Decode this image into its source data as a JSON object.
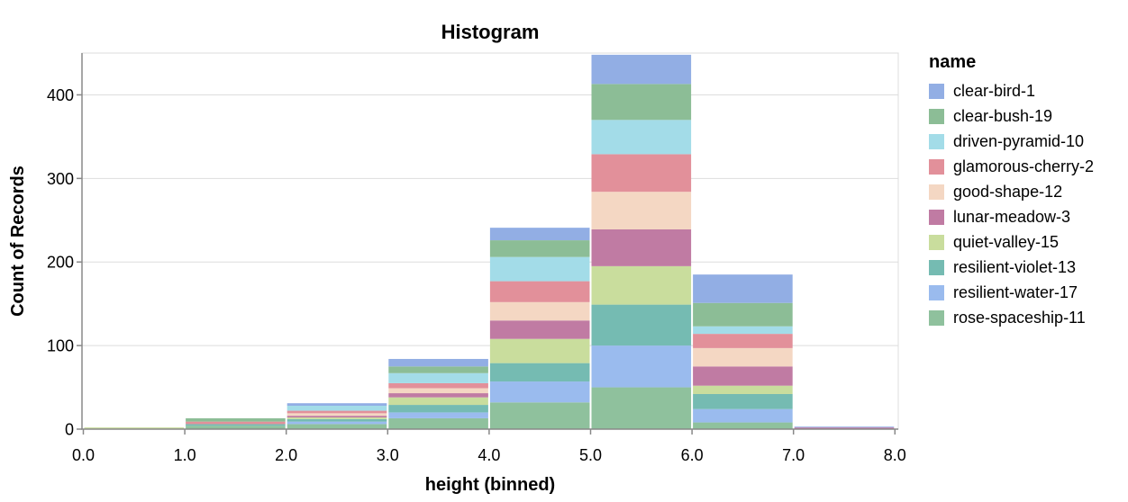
{
  "chart": {
    "title": "Histogram",
    "x_axis": {
      "title": "height (binned)",
      "tick_labels": [
        "0.0",
        "1.0",
        "2.0",
        "3.0",
        "4.0",
        "5.0",
        "6.0",
        "7.0",
        "8.0"
      ],
      "tick_values": [
        0,
        1,
        2,
        3,
        4,
        5,
        6,
        7,
        8
      ]
    },
    "y_axis": {
      "title": "Count of Records",
      "tick_labels": [
        "0",
        "100",
        "200",
        "300",
        "400"
      ],
      "tick_values": [
        0,
        100,
        200,
        300,
        400
      ]
    }
  },
  "legend": {
    "title": "name"
  },
  "colors": {
    "background": "#ffffff",
    "gridline": "#dddddd",
    "plot_border": "#dddddd",
    "axis_domain": "#888888",
    "text": "#000000",
    "bar_gap": "#ffffff"
  },
  "chart_data": {
    "type": "bar",
    "variant": "stacked-histogram",
    "title": "Histogram",
    "xlabel": "height (binned)",
    "ylabel": "Count of Records",
    "xlim": [
      0,
      8
    ],
    "ylim": [
      0,
      450
    ],
    "grid": true,
    "legend_title": "name",
    "legend_position": "right",
    "stack_order_top_to_bottom": "alphabetical",
    "bin_edges": [
      0,
      1,
      2,
      3,
      4,
      5,
      6,
      7,
      8
    ],
    "bin_totals": [
      2,
      13,
      31,
      84,
      241,
      448,
      185,
      3
    ],
    "series": [
      {
        "name": "clear-bird-1",
        "color": "#92aee4",
        "values": [
          0,
          0,
          3,
          9,
          15,
          35,
          34,
          1
        ]
      },
      {
        "name": "clear-bush-19",
        "color": "#8cbd96",
        "values": [
          0,
          4,
          0,
          8,
          20,
          43,
          28,
          0
        ]
      },
      {
        "name": "driven-pyramid-10",
        "color": "#a3dce8",
        "values": [
          0,
          0,
          6,
          12,
          29,
          41,
          9,
          0
        ]
      },
      {
        "name": "glamorous-cherry-2",
        "color": "#e2909a",
        "values": [
          0,
          3,
          3,
          6,
          25,
          45,
          17,
          0
        ]
      },
      {
        "name": "good-shape-12",
        "color": "#f4d7c3",
        "values": [
          0,
          0,
          3,
          6,
          22,
          45,
          22,
          0
        ]
      },
      {
        "name": "lunar-meadow-3",
        "color": "#c07ba3",
        "values": [
          0,
          0,
          2,
          5,
          22,
          44,
          23,
          2
        ]
      },
      {
        "name": "quiet-valley-15",
        "color": "#c9dd9d",
        "values": [
          2,
          0,
          2,
          9,
          29,
          46,
          10,
          0
        ]
      },
      {
        "name": "resilient-violet-13",
        "color": "#75bbb2",
        "values": [
          0,
          2,
          3,
          9,
          22,
          49,
          18,
          0
        ]
      },
      {
        "name": "resilient-water-17",
        "color": "#9abbee",
        "values": [
          0,
          0,
          3,
          7,
          25,
          50,
          16,
          0
        ]
      },
      {
        "name": "rose-spaceship-11",
        "color": "#8fc19d",
        "values": [
          0,
          4,
          6,
          13,
          32,
          50,
          8,
          0
        ]
      }
    ]
  }
}
